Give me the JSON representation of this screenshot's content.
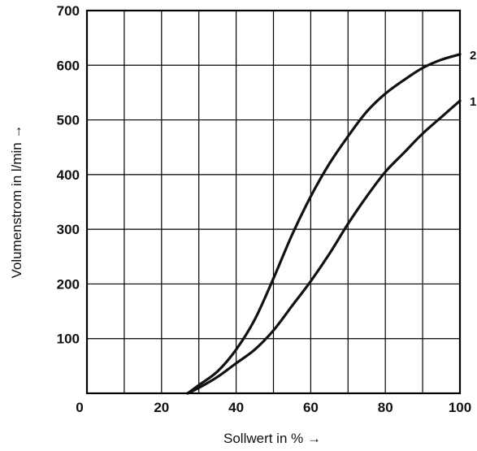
{
  "chart_data": {
    "type": "line",
    "title": "",
    "xlabel": "Sollwert in % →",
    "ylabel": "Volumenstrom in l/min →",
    "xlim": [
      0,
      100
    ],
    "ylim": [
      0,
      700
    ],
    "grid": true,
    "x_ticks": [
      "0",
      "20",
      "40",
      "60",
      "80",
      "100"
    ],
    "y_ticks": [
      "100",
      "200",
      "300",
      "400",
      "500",
      "600",
      "700"
    ],
    "series": [
      {
        "name": "2",
        "x": [
          27,
          30,
          35,
          40,
          45,
          50,
          55,
          60,
          65,
          70,
          75,
          80,
          85,
          90,
          95,
          100
        ],
        "y": [
          0,
          15,
          40,
          80,
          135,
          210,
          290,
          360,
          420,
          470,
          515,
          548,
          573,
          595,
          610,
          620
        ]
      },
      {
        "name": "1",
        "x": [
          27,
          30,
          35,
          40,
          45,
          50,
          55,
          60,
          65,
          70,
          75,
          80,
          85,
          90,
          95,
          100
        ],
        "y": [
          0,
          10,
          30,
          55,
          80,
          115,
          160,
          205,
          255,
          310,
          360,
          405,
          440,
          475,
          505,
          535
        ]
      }
    ]
  }
}
